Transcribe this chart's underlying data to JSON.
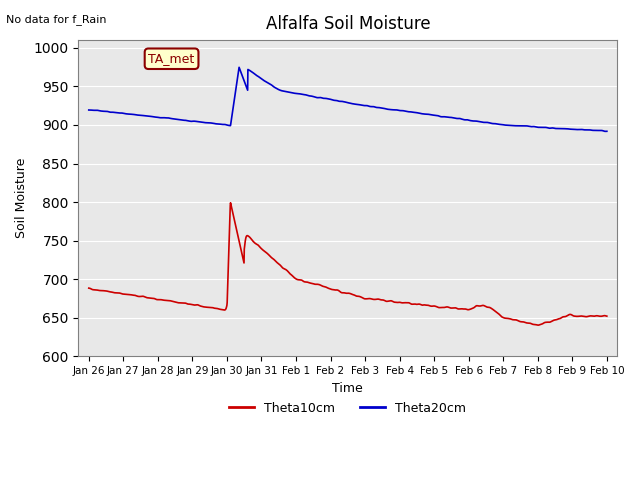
{
  "title": "Alfalfa Soil Moisture",
  "xlabel": "Time",
  "ylabel": "Soil Moisture",
  "top_left_text": "No data for f_Rain",
  "annotation_box": "TA_met",
  "xlim_days": [
    0,
    15
  ],
  "ylim": [
    600,
    1010
  ],
  "yticks": [
    600,
    650,
    700,
    750,
    800,
    850,
    900,
    950,
    1000
  ],
  "x_tick_labels": [
    "Jan 26",
    "Jan 27",
    "Jan 28",
    "Jan 29",
    "Jan 30",
    "Jan 31",
    "Feb 1",
    "Feb 2",
    "Feb 3",
    "Feb 4",
    "Feb 5",
    "Feb 6",
    "Feb 7",
    "Feb 8",
    "Feb 9",
    "Feb 10"
  ],
  "bg_color": "#e8e8e8",
  "line_red": "#cc0000",
  "line_blue": "#0000cc",
  "legend_labels": [
    "Theta10cm",
    "Theta20cm"
  ],
  "legend_colors": [
    "#cc0000",
    "#0000cc"
  ]
}
